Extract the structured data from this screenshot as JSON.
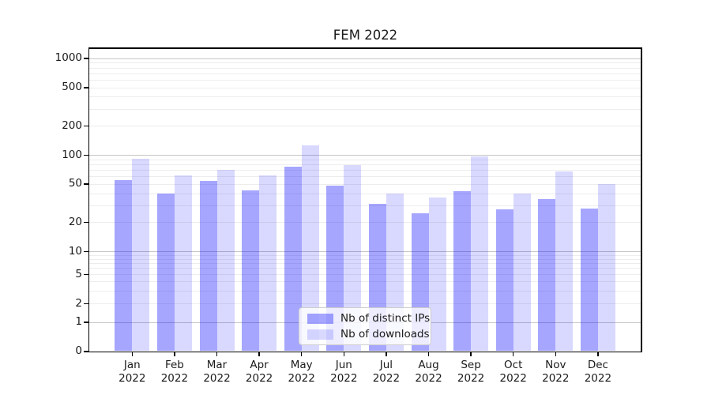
{
  "title": "FEM 2022",
  "chart_data": {
    "type": "bar",
    "title": "FEM 2022",
    "categories": [
      "Jan 2022",
      "Feb 2022",
      "Mar 2022",
      "Apr 2022",
      "May 2022",
      "Jun 2022",
      "Jul 2022",
      "Aug 2022",
      "Sep 2022",
      "Oct 2022",
      "Nov 2022",
      "Dec 2022"
    ],
    "series": [
      {
        "name": "Nb of distinct IPs",
        "color": "rgba(0,0,255,0.35)",
        "values": [
          55,
          40,
          54,
          43,
          75,
          48,
          31,
          25,
          42,
          27,
          35,
          28
        ]
      },
      {
        "name": "Nb of downloads",
        "color": "rgba(0,0,255,0.15)",
        "values": [
          91,
          61,
          70,
          61,
          125,
          78,
          40,
          36,
          96,
          40,
          67,
          50
        ]
      }
    ],
    "xlabel": "",
    "ylabel": "",
    "yscale": "log-with-zero-baseline",
    "y_ticks": [
      0,
      1,
      2,
      5,
      10,
      20,
      50,
      100,
      200,
      500,
      1000
    ],
    "y_major_gridlines": [
      1,
      10,
      100,
      1000
    ],
    "y_minor_gridline_subs": [
      2,
      3,
      4,
      5,
      6,
      7,
      8,
      9
    ],
    "ylim": [
      0,
      1270
    ],
    "grid": true,
    "legend_position": "lower center"
  },
  "colors": {
    "bar_primary": "rgba(0,0,255,0.35)",
    "bar_secondary": "rgba(0,0,255,0.15)",
    "grid_major": "#c6c6c6",
    "grid_minor": "#ededed",
    "spine": "#000000",
    "text": "#1a1a1a",
    "legend_border": "#cccccc",
    "legend_bg": "rgba(255,255,255,0.8)"
  }
}
